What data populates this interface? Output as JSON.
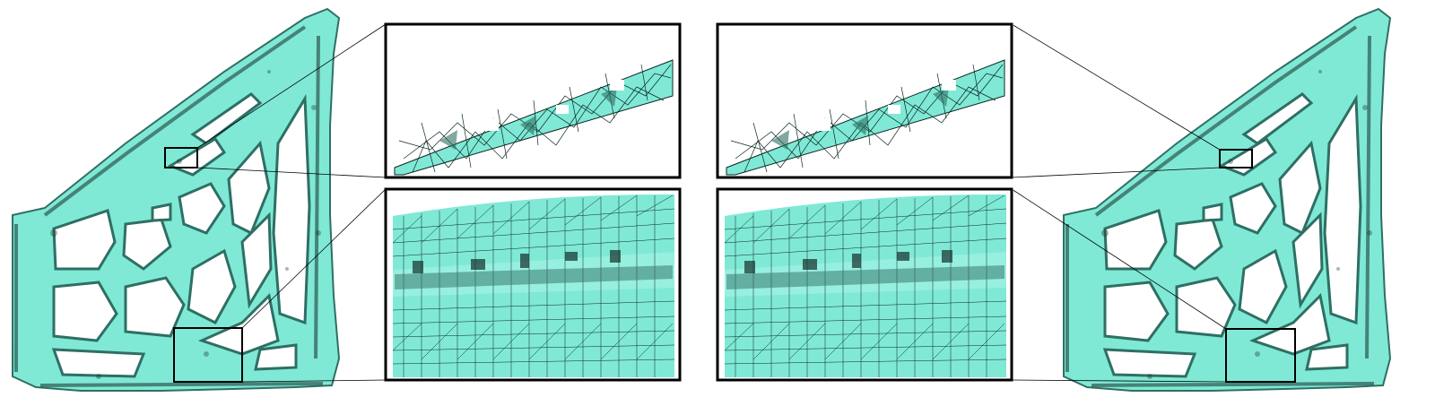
{
  "figure": {
    "description_free": true,
    "colors": {
      "mesh_fill": "#7fe9d6",
      "mesh_fill_light": "#a6f4e6",
      "mesh_shadow": "#2f6f63",
      "mesh_dark": "#16302b",
      "wire": "#0c2622",
      "frame": "#000000",
      "background": "#ffffff"
    },
    "left_model": {
      "icon": "bracket-mesh-icon",
      "orientation": "normal"
    },
    "right_model": {
      "icon": "bracket-mesh-icon",
      "orientation": "normal"
    },
    "insets": [
      {
        "id": "top-left",
        "content": "thin-strut-zoom"
      },
      {
        "id": "bottom-left",
        "content": "thick-beam-zoom"
      },
      {
        "id": "top-right",
        "content": "thin-strut-zoom"
      },
      {
        "id": "bottom-right",
        "content": "thick-beam-zoom"
      }
    ]
  }
}
